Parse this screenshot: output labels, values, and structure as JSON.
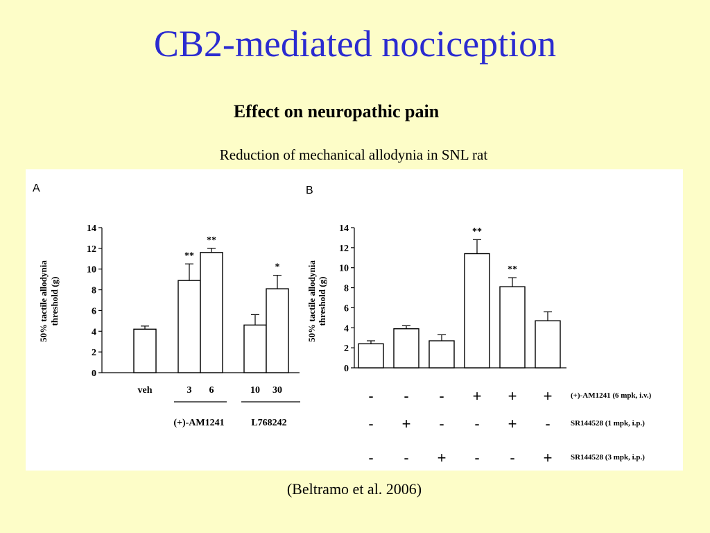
{
  "slide": {
    "title": "CB2-mediated nociception",
    "subtitle": "Effect on neuropathic pain",
    "caption": "Reduction of mechanical allodynia in SNL rat",
    "citation": "(Beltramo et al. 2006)"
  },
  "chart_data": [
    {
      "type": "bar",
      "panel": "A",
      "ylabel": "50% tactile allodynia threshold (g)",
      "ylim": [
        0,
        14
      ],
      "yticks": [
        "0",
        "2",
        "4",
        "6",
        "8",
        "10",
        "12",
        "14"
      ],
      "bars": [
        {
          "label": "veh",
          "value": 4.2,
          "error": 0.3,
          "sig": ""
        },
        {
          "label": "3",
          "value": 8.9,
          "error": 1.6,
          "sig": "**"
        },
        {
          "label": "6",
          "value": 11.6,
          "error": 0.4,
          "sig": "**"
        },
        {
          "label": "10",
          "value": 4.6,
          "error": 1.0,
          "sig": ""
        },
        {
          "label": "30",
          "value": 8.1,
          "error": 1.3,
          "sig": "*"
        }
      ],
      "groups": [
        {
          "label": "(+)-AM1241"
        },
        {
          "label": "L768242"
        }
      ]
    },
    {
      "type": "bar",
      "panel": "B",
      "ylabel": "50% tactile allodynia threshold (g)",
      "ylim": [
        0,
        14
      ],
      "yticks": [
        "0",
        "2",
        "4",
        "6",
        "8",
        "10",
        "12",
        "14"
      ],
      "bars": [
        {
          "value": 2.4,
          "error": 0.3,
          "sig": ""
        },
        {
          "value": 3.9,
          "error": 0.3,
          "sig": ""
        },
        {
          "value": 2.7,
          "error": 0.6,
          "sig": ""
        },
        {
          "value": 11.4,
          "error": 1.4,
          "sig": "**"
        },
        {
          "value": 8.1,
          "error": 0.9,
          "sig": "**"
        },
        {
          "value": 4.7,
          "error": 0.9,
          "sig": ""
        }
      ],
      "treatments": [
        {
          "label": "(+)-AM1241 (6 mpk, i.v.)",
          "signs": [
            "-",
            "-",
            "-",
            "+",
            "+",
            "+"
          ]
        },
        {
          "label": "SR144528   (1 mpk, i.p.)",
          "signs": [
            "-",
            "+",
            "-",
            "-",
            "+",
            "-"
          ]
        },
        {
          "label": "SR144528   (3 mpk, i.p.)",
          "signs": [
            "-",
            "-",
            "+",
            "-",
            "-",
            "+"
          ]
        }
      ]
    }
  ]
}
